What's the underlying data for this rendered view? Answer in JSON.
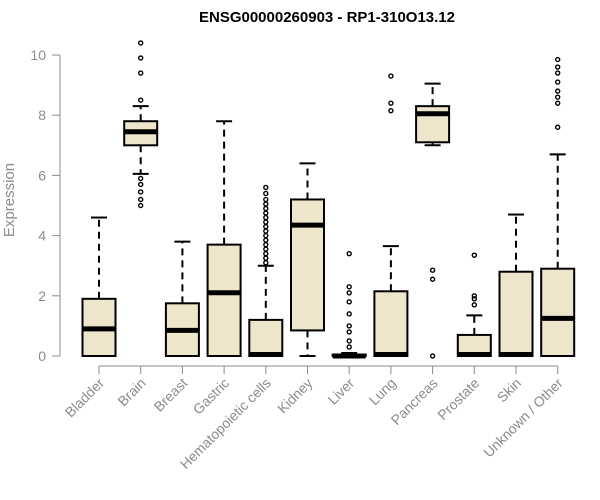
{
  "chart_data": {
    "type": "boxplot",
    "title": "ENSG00000260903 - RP1-310O13.12",
    "xlabel": "",
    "ylabel": "Expression",
    "ylim": [
      0,
      10
    ],
    "yticks": [
      0,
      2,
      4,
      6,
      8,
      10
    ],
    "box_fill": "#ede6cb",
    "line_color": "#000000",
    "axis_color": "#8c8c8c",
    "categories": [
      "Bladder",
      "Brain",
      "Breast",
      "Gastric",
      "Hematopoietic cells",
      "Kidney",
      "Liver",
      "Lung",
      "Pancreas",
      "Prostate",
      "Skin",
      "Unknown / Other"
    ],
    "boxes": [
      {
        "label": "Bladder",
        "whisker_low": 0,
        "q1": 0,
        "median": 0.9,
        "q3": 1.9,
        "whisker_high": 4.6,
        "outliers": []
      },
      {
        "label": "Brain",
        "whisker_low": 6.05,
        "q1": 7.0,
        "median": 7.45,
        "q3": 7.8,
        "whisker_high": 8.3,
        "outliers": [
          5.0,
          5.2,
          5.45,
          5.7,
          5.9,
          8.5,
          9.4,
          9.9,
          10.4
        ]
      },
      {
        "label": "Breast",
        "whisker_low": 0,
        "q1": 0,
        "median": 0.85,
        "q3": 1.75,
        "whisker_high": 3.8,
        "outliers": []
      },
      {
        "label": "Gastric",
        "whisker_low": 0,
        "q1": 0,
        "median": 2.1,
        "q3": 3.7,
        "whisker_high": 7.8,
        "outliers": []
      },
      {
        "label": "Hematopoietic cells",
        "whisker_low": 0,
        "q1": 0,
        "median": 0.05,
        "q3": 1.2,
        "whisker_high": 3.0,
        "outliers": [
          3.1,
          3.25,
          3.4,
          3.55,
          3.7,
          3.85,
          4.0,
          4.15,
          4.3,
          4.45,
          4.6,
          4.75,
          4.9,
          5.05,
          5.2,
          5.4,
          5.6
        ]
      },
      {
        "label": "Kidney",
        "whisker_low": 0,
        "q1": 0.85,
        "median": 4.35,
        "q3": 5.2,
        "whisker_high": 6.4,
        "outliers": []
      },
      {
        "label": "Liver",
        "whisker_low": 0,
        "q1": 0,
        "median": 0,
        "q3": 0.05,
        "whisker_high": 0.1,
        "outliers": [
          0.3,
          0.5,
          0.8,
          1.0,
          1.4,
          1.8,
          2.1,
          2.3,
          3.4
        ]
      },
      {
        "label": "Lung",
        "whisker_low": 0,
        "q1": 0,
        "median": 0.05,
        "q3": 2.15,
        "whisker_high": 3.65,
        "outliers": [
          8.15,
          8.4,
          9.3
        ]
      },
      {
        "label": "Pancreas",
        "whisker_low": 7.0,
        "q1": 7.1,
        "median": 8.05,
        "q3": 8.3,
        "whisker_high": 9.05,
        "outliers": [
          0,
          2.55,
          2.85
        ]
      },
      {
        "label": "Prostate",
        "whisker_low": 0,
        "q1": 0,
        "median": 0.05,
        "q3": 0.7,
        "whisker_high": 1.35,
        "outliers": [
          1.7,
          1.9,
          2.0,
          3.35
        ]
      },
      {
        "label": "Skin",
        "whisker_low": 0,
        "q1": 0,
        "median": 0.05,
        "q3": 2.8,
        "whisker_high": 4.7,
        "outliers": []
      },
      {
        "label": "Unknown / Other",
        "whisker_low": 0,
        "q1": 0,
        "median": 1.25,
        "q3": 2.9,
        "whisker_high": 6.7,
        "outliers": [
          7.6,
          8.4,
          8.6,
          8.8,
          9.1,
          9.4,
          9.6,
          9.85
        ]
      }
    ]
  }
}
